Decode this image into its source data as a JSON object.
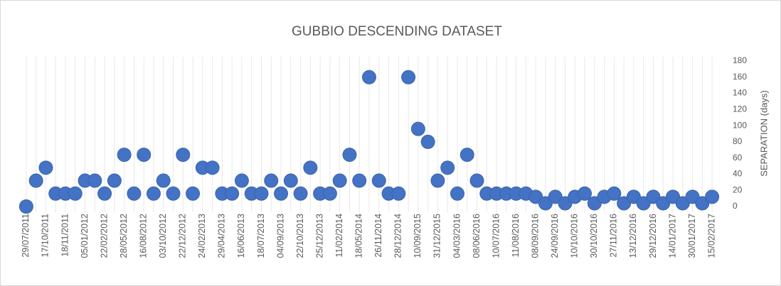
{
  "chart_data": {
    "type": "scatter",
    "title": "GUBBIO DESCENDING DATASET",
    "y_label": "SEPARATION (days)",
    "categories": [
      "29/07/2011",
      null,
      "17/10/2011",
      null,
      "18/11/2011",
      null,
      "05/01/2012",
      null,
      "22/02/2012",
      null,
      "28/05/2012",
      null,
      "16/08/2012",
      null,
      "03/10/2012",
      null,
      "22/12/2012",
      null,
      "24/02/2013",
      null,
      "29/04/2013",
      null,
      "16/06/2013",
      null,
      "18/07/2013",
      null,
      "04/09/2013",
      null,
      "22/10/2013",
      null,
      "25/12/2013",
      null,
      "11/02/2014",
      null,
      "18/05/2014",
      null,
      "26/11/2014",
      null,
      "28/12/2014",
      null,
      "10/09/2015",
      null,
      "31/12/2015",
      null,
      "04/03/2016",
      null,
      "08/06/2016",
      null,
      "10/07/2016",
      null,
      "11/08/2016",
      null,
      "08/09/2016",
      null,
      "24/09/2016",
      null,
      "10/10/2016",
      null,
      "30/10/2016",
      null,
      "27/11/2016",
      null,
      "13/12/2016",
      null,
      "29/12/2016",
      null,
      "14/01/2017",
      null,
      "30/01/2017",
      null,
      "15/02/2017"
    ],
    "values": [
      0,
      32,
      48,
      16,
      16,
      16,
      32,
      32,
      16,
      32,
      64,
      16,
      64,
      16,
      32,
      16,
      64,
      16,
      48,
      48,
      16,
      16,
      32,
      16,
      16,
      32,
      16,
      32,
      16,
      48,
      16,
      16,
      32,
      64,
      32,
      160,
      32,
      16,
      16,
      160,
      96,
      80,
      32,
      48,
      16,
      64,
      32,
      16,
      16,
      16,
      16,
      16,
      12,
      4,
      12,
      4,
      12,
      16,
      4,
      12,
      16,
      4,
      12,
      4,
      12,
      4,
      12,
      4,
      12,
      4,
      12
    ],
    "color": "#4472c4",
    "ylim": [
      0,
      180
    ],
    "yticks": [
      0,
      20,
      40,
      60,
      80,
      100,
      120,
      140,
      160,
      180
    ],
    "y_axis_side": "right",
    "grid": "vertical"
  }
}
